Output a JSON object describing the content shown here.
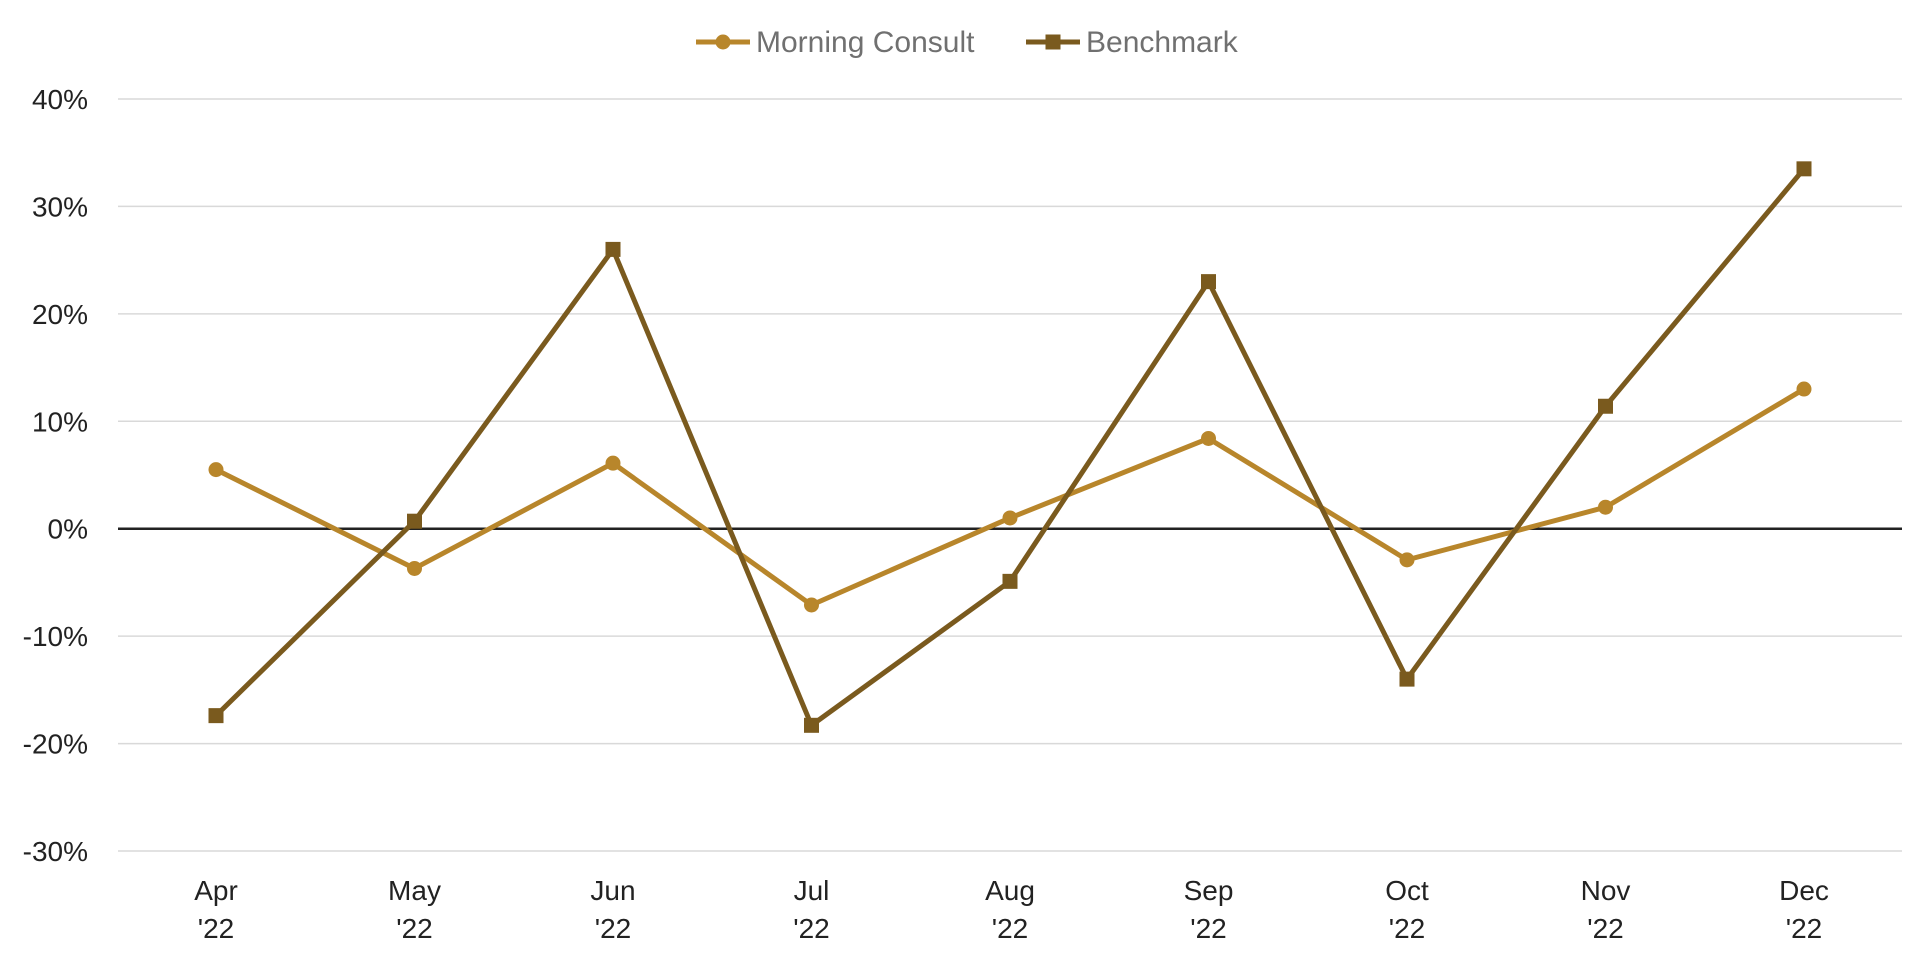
{
  "chart_data": {
    "type": "line",
    "title": "",
    "xlabel": "",
    "ylabel": "",
    "categories": [
      [
        "Apr",
        "'22"
      ],
      [
        "May",
        "'22"
      ],
      [
        "Jun",
        "'22"
      ],
      [
        "Jul",
        "'22"
      ],
      [
        "Aug",
        "'22"
      ],
      [
        "Sep",
        "'22"
      ],
      [
        "Oct",
        "'22"
      ],
      [
        "Nov",
        "'22"
      ],
      [
        "Dec",
        "'22"
      ]
    ],
    "series": [
      {
        "name": "Morning Consult",
        "marker": "circle",
        "color": "#B8862B",
        "values": [
          5.5,
          -3.7,
          6.1,
          -7.1,
          1.0,
          8.4,
          -2.9,
          2.0,
          13.0
        ]
      },
      {
        "name": "Benchmark",
        "marker": "square",
        "color": "#7A5A1E",
        "values": [
          -17.4,
          0.7,
          26.0,
          -18.3,
          -4.9,
          23.0,
          -14.0,
          11.4,
          33.5
        ]
      }
    ],
    "ylim": [
      -30,
      40
    ],
    "yticks": [
      40,
      30,
      20,
      10,
      0,
      -10,
      -20,
      -30
    ],
    "ytick_labels": [
      "40%",
      "30%",
      "20%",
      "10%",
      "0%",
      "-10%",
      "-20%",
      "-30%"
    ],
    "grid": true,
    "legend_position": "top-center"
  }
}
